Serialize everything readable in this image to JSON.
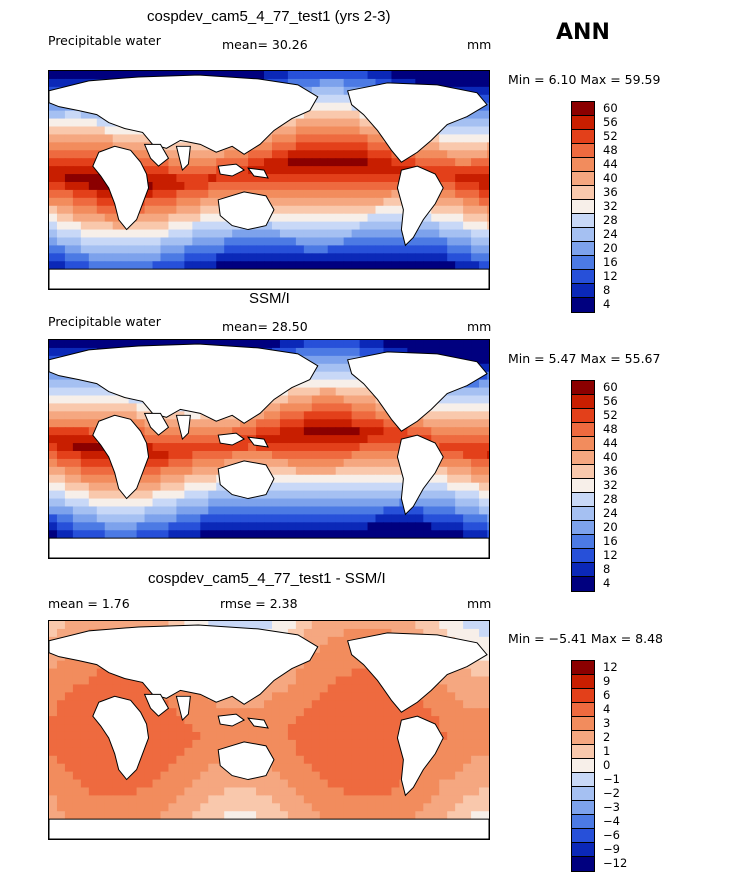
{
  "season": "ANN",
  "panels": [
    {
      "title": "cospdev_cam5_4_77_test1 (yrs 2-3)",
      "left_label": "Precipitable water",
      "center_label": "mean=  30.26",
      "units": "mm",
      "minmax": "Min =    6.10 Max =  59.59",
      "colorbar_ticks": [
        "60",
        "56",
        "52",
        "48",
        "44",
        "40",
        "36",
        "32",
        "28",
        "24",
        "20",
        "16",
        "12",
        "8",
        "4"
      ],
      "field_type": "model"
    },
    {
      "title": "SSM/I",
      "left_label": "Precipitable water",
      "center_label": "mean=  28.50",
      "units": "mm",
      "minmax": "Min =    5.47 Max =  55.67",
      "colorbar_ticks": [
        "60",
        "56",
        "52",
        "48",
        "44",
        "40",
        "36",
        "32",
        "28",
        "24",
        "20",
        "16",
        "12",
        "8",
        "4"
      ],
      "field_type": "obs"
    },
    {
      "title": "cospdev_cam5_4_77_test1 - SSM/I",
      "left_label": "mean =   1.76",
      "center_label": "rmse =   2.38",
      "units": "mm",
      "minmax": "Min =  −5.41 Max =   8.48",
      "colorbar_ticks": [
        "12",
        "9",
        "6",
        "4",
        "3",
        "2",
        "1",
        "0",
        "−1",
        "−2",
        "−3",
        "−4",
        "−6",
        "−9",
        "−12"
      ],
      "field_type": "diff"
    }
  ],
  "colorbar_colors": [
    "#8b0000",
    "#c81e00",
    "#e3401a",
    "#ee6a3f",
    "#f28c5d",
    "#f5a780",
    "#f9c8ac",
    "#f7efe9",
    "#c8d8f7",
    "#a5c0f2",
    "#7da2ec",
    "#4c7ae4",
    "#2750d9",
    "#0b28b8",
    "#00007f"
  ]
}
